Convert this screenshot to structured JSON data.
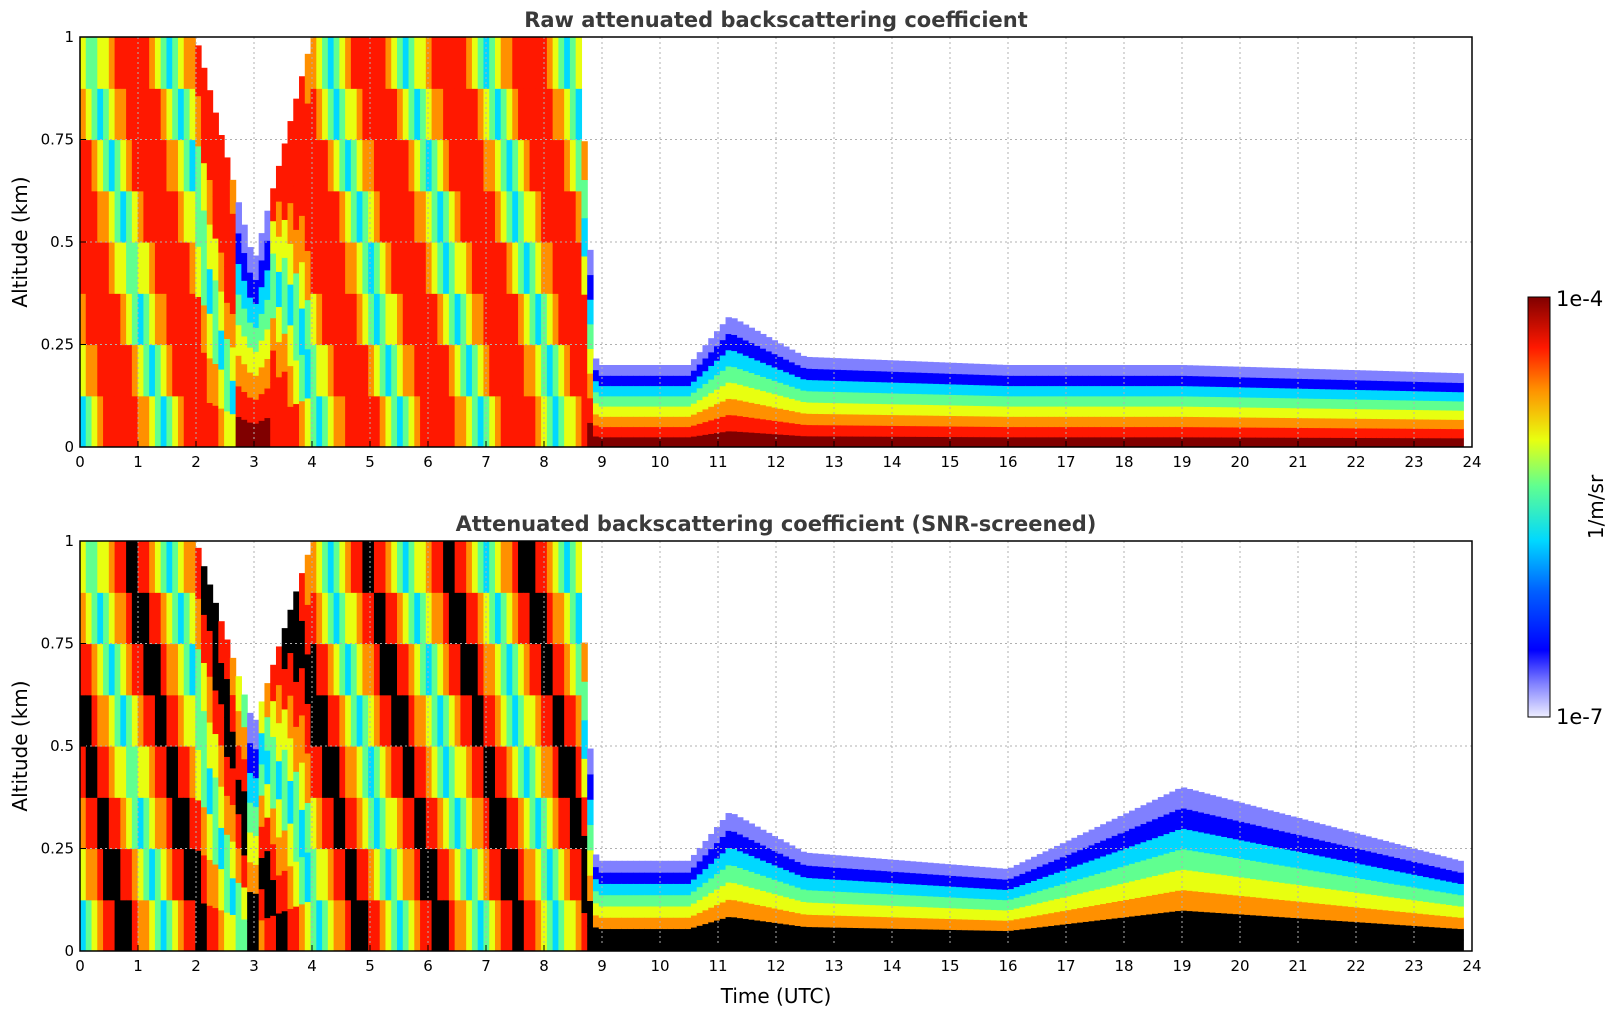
{
  "chart_data": [
    {
      "type": "heatmap",
      "title": "Raw attenuated backscattering coefficient",
      "ylabel": "Altitude (km)",
      "xlabel": "",
      "xlim": [
        0,
        24
      ],
      "ylim": [
        0,
        1
      ],
      "x_ticks": [
        "0",
        "1",
        "2",
        "3",
        "4",
        "5",
        "6",
        "7",
        "8",
        "9",
        "10",
        "11",
        "12",
        "13",
        "14",
        "15",
        "16",
        "17",
        "18",
        "19",
        "20",
        "21",
        "22",
        "23",
        "24"
      ],
      "y_ticks": [
        "0",
        "0.25",
        "0.5",
        "0.75",
        "1"
      ],
      "grid": true,
      "colormap": "jet",
      "color_scale": "log",
      "value_range": [
        1e-07,
        0.0001
      ],
      "layer_top_km": [
        {
          "t": 0,
          "top": 1.0
        },
        {
          "t": 2,
          "top": 1.0
        },
        {
          "t": 3,
          "top": 0.45
        },
        {
          "t": 4,
          "top": 1.0
        },
        {
          "t": 8.6,
          "top": 1.0
        },
        {
          "t": 8.9,
          "top": 0.2
        },
        {
          "t": 10.5,
          "top": 0.2
        },
        {
          "t": 11.2,
          "top": 0.32
        },
        {
          "t": 12.5,
          "top": 0.22
        },
        {
          "t": 16,
          "top": 0.2
        },
        {
          "t": 19,
          "top": 0.2
        },
        {
          "t": 23.8,
          "top": 0.18
        }
      ]
    },
    {
      "type": "heatmap",
      "title": "Attenuated backscattering coefficient (SNR-screened)",
      "ylabel": "Altitude (km)",
      "xlabel": "Time (UTC)",
      "xlim": [
        0,
        24
      ],
      "ylim": [
        0,
        1
      ],
      "x_ticks": [
        "0",
        "1",
        "2",
        "3",
        "4",
        "5",
        "6",
        "7",
        "8",
        "9",
        "10",
        "11",
        "12",
        "13",
        "14",
        "15",
        "16",
        "17",
        "18",
        "19",
        "20",
        "21",
        "22",
        "23",
        "24"
      ],
      "y_ticks": [
        "0",
        "0.25",
        "0.5",
        "0.75",
        "1"
      ],
      "grid": true,
      "colormap": "jet",
      "color_scale": "log",
      "value_range": [
        1e-07,
        0.0001
      ],
      "saturated_color": "#000000",
      "layer_top_km": [
        {
          "t": 0,
          "top": 1.0
        },
        {
          "t": 2,
          "top": 1.0
        },
        {
          "t": 3,
          "top": 0.55
        },
        {
          "t": 4,
          "top": 1.0
        },
        {
          "t": 8.6,
          "top": 1.0
        },
        {
          "t": 8.9,
          "top": 0.22
        },
        {
          "t": 10.5,
          "top": 0.22
        },
        {
          "t": 11.2,
          "top": 0.34
        },
        {
          "t": 12.5,
          "top": 0.24
        },
        {
          "t": 16,
          "top": 0.2
        },
        {
          "t": 19,
          "top": 0.4
        },
        {
          "t": 23.8,
          "top": 0.22
        }
      ]
    }
  ],
  "colorbar": {
    "label": "1/m/sr",
    "max_label": "1e-4",
    "min_label": "1e-7",
    "scale": "log"
  }
}
